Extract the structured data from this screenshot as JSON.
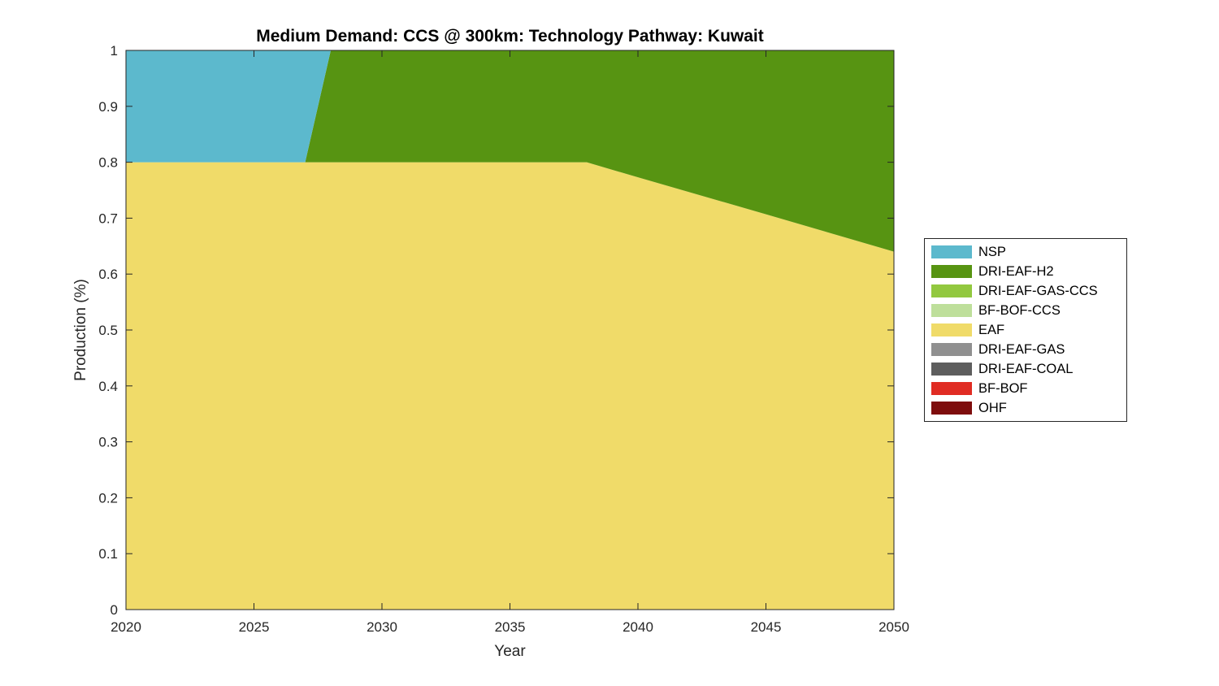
{
  "figure": {
    "background": "#ffffff",
    "axis_color": "#262626"
  },
  "chart_data": {
    "type": "area",
    "stacked": true,
    "title": "Medium Demand: CCS @ 300km: Technology Pathway: Kuwait",
    "xlabel": "Year",
    "ylabel": "Production (%)",
    "xlim": [
      2020,
      2050
    ],
    "ylim": [
      0,
      1
    ],
    "xticks": [
      2020,
      2025,
      2030,
      2035,
      2040,
      2045,
      2050
    ],
    "yticks": [
      0,
      0.1,
      0.2,
      0.3,
      0.4,
      0.5,
      0.6,
      0.7,
      0.8,
      0.9,
      1
    ],
    "ytick_labels": [
      "0",
      "0.1",
      "0.2",
      "0.3",
      "0.4",
      "0.5",
      "0.6",
      "0.7",
      "0.8",
      "0.9",
      "1"
    ],
    "grid": false,
    "legend_position": "right-outside",
    "x": [
      2020,
      2025,
      2027,
      2028,
      2030,
      2035,
      2038,
      2040,
      2045,
      2050
    ],
    "series": [
      {
        "name": "OHF",
        "color": "#7E0D0D",
        "values": [
          0,
          0,
          0,
          0,
          0,
          0,
          0,
          0,
          0,
          0
        ]
      },
      {
        "name": "BF-BOF",
        "color": "#E02C23",
        "values": [
          0,
          0,
          0,
          0,
          0,
          0,
          0,
          0,
          0,
          0
        ]
      },
      {
        "name": "DRI-EAF-COAL",
        "color": "#5E5E5E",
        "values": [
          0,
          0,
          0,
          0,
          0,
          0,
          0,
          0,
          0,
          0
        ]
      },
      {
        "name": "DRI-EAF-GAS",
        "color": "#909090",
        "values": [
          0,
          0,
          0,
          0,
          0,
          0,
          0,
          0,
          0,
          0
        ]
      },
      {
        "name": "EAF",
        "color": "#F0DB69",
        "values": [
          0.8,
          0.8,
          0.8,
          0.8,
          0.8,
          0.8,
          0.8,
          0.773,
          0.707,
          0.64
        ]
      },
      {
        "name": "BF-BOF-CCS",
        "color": "#BEDF9B",
        "values": [
          0,
          0,
          0,
          0,
          0,
          0,
          0,
          0,
          0,
          0
        ]
      },
      {
        "name": "DRI-EAF-GAS-CCS",
        "color": "#92C83F",
        "values": [
          0,
          0,
          0,
          0,
          0,
          0,
          0,
          0,
          0,
          0
        ]
      },
      {
        "name": "DRI-EAF-H2",
        "color": "#579412",
        "values": [
          0,
          0,
          0,
          0.2,
          0.2,
          0.2,
          0.2,
          0.227,
          0.293,
          0.36
        ]
      },
      {
        "name": "NSP",
        "color": "#5CB9CD",
        "values": [
          0.2,
          0.2,
          0.2,
          0,
          0,
          0,
          0,
          0,
          0,
          0
        ]
      }
    ],
    "legend_order": [
      "NSP",
      "DRI-EAF-H2",
      "DRI-EAF-GAS-CCS",
      "BF-BOF-CCS",
      "EAF",
      "DRI-EAF-GAS",
      "DRI-EAF-COAL",
      "BF-BOF",
      "OHF"
    ]
  }
}
